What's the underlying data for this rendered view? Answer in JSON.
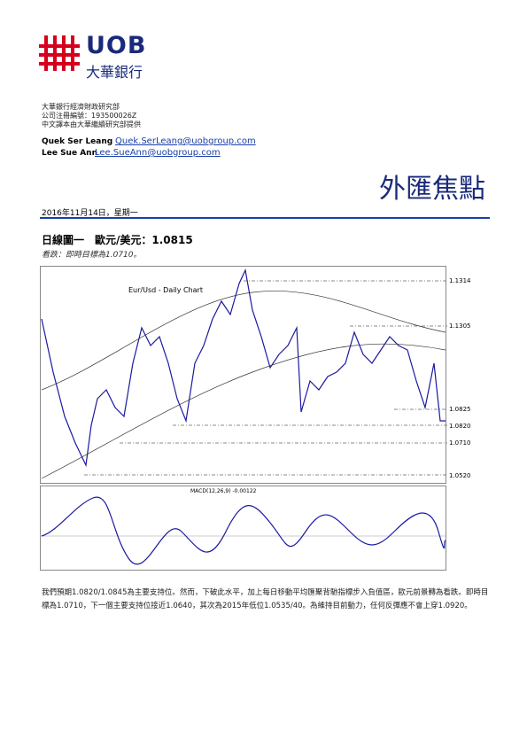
{
  "header": {
    "logo": "UOB",
    "logo_chinese": "大華銀行",
    "department": "大華銀行經濟財政研究部",
    "registration": "公司注冊編號：193500026Z",
    "translation_note": "中文譯本由大華繼續研究部提供",
    "authors": [
      {
        "name": "Quek Ser Leang",
        "email": "Quek.SerLeang@uobgroup.com"
      },
      {
        "name": "Lee Sue Ann",
        "email": "Lee.SueAnn@uobgroup.com"
      }
    ],
    "report_title": "外匯焦點",
    "date": "2016年11月14日，星期一"
  },
  "section": {
    "heading": "日線圖一　歐元/美元：1.0815",
    "subheading": "看跌：即時目標為1.0710。",
    "chart": {
      "title": "Eur/Usd - Daily Chart",
      "macd_label": "MACD(12,26,9) -0.00122",
      "levels": [
        "1.1314",
        "1.1305",
        "1.0825",
        "1.0820",
        "1.0710",
        "1.0520"
      ]
    },
    "paragraph": "我們預期1.0820/1.0845為主要支持位。然而，下破此水平，加上每日移動平均匯聚背馳指標步入負值區，歐元前景轉為看跌。即時目標為1.0710，下一個主要支持位接近1.0640，其次為2015年低位1.0535/40。為維持目前動力，任何反彈應不會上穿1.0920。"
  }
}
